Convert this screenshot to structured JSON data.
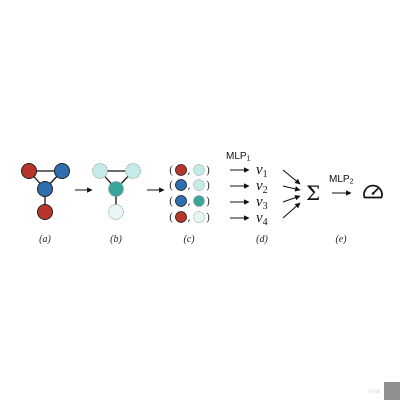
{
  "colors": {
    "red": "#b8352a",
    "blue": "#2f6fb0",
    "teal": "#3aa59a",
    "light_teal": "#c5ebe8",
    "pale": "#e6f6f4",
    "edge": "#111111",
    "corner_square": "#8f8f8f"
  },
  "panels": {
    "a": {
      "label": "(a)"
    },
    "b": {
      "label": "(b)"
    },
    "c": {
      "label": "(c)"
    },
    "d": {
      "label": "(d)",
      "mlp_main": "MLP",
      "mlp_sub": "1",
      "variables": [
        {
          "base": "v",
          "sub": "1"
        },
        {
          "base": "v",
          "sub": "2"
        },
        {
          "base": "v",
          "sub": "3"
        },
        {
          "base": "v",
          "sub": "4"
        }
      ]
    },
    "e": {
      "label": "(e)",
      "sum_symbol": "Σ",
      "mlp_main": "MLP",
      "mlp_sub": "2",
      "output_icon": "gauge-icon"
    }
  },
  "pairs": [
    {
      "left": "red",
      "right": "light_teal"
    },
    {
      "left": "blue",
      "right": "light_teal"
    },
    {
      "left": "blue",
      "right": "teal"
    },
    {
      "left": "red",
      "right": "pale"
    }
  ],
  "corner": {
    "text": "ⓒⓘⓓ"
  }
}
